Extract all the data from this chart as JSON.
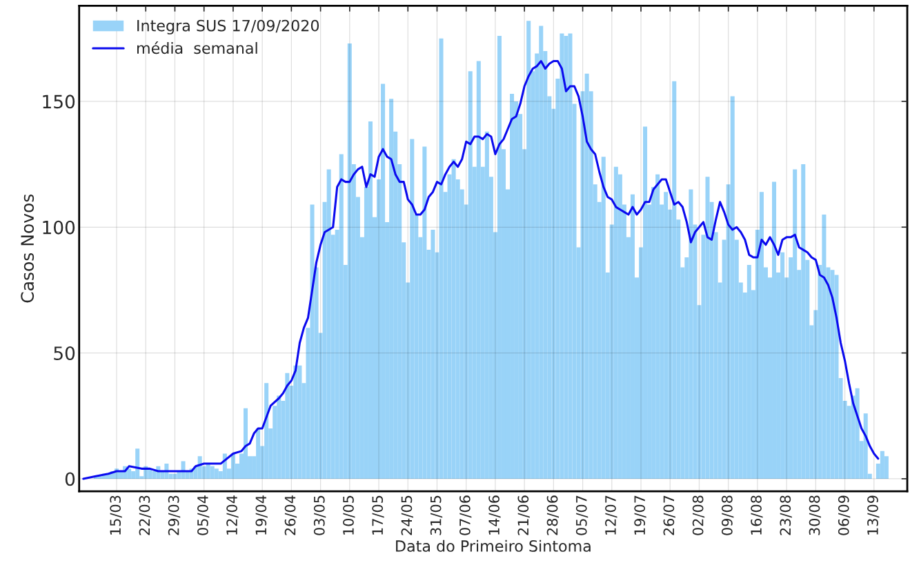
{
  "chart_data": {
    "type": "bar",
    "xlabel": "Data do Primeiro Sintoma",
    "ylabel": "Casos Novos",
    "xlim": [
      "2020-03-06",
      "2020-09-21"
    ],
    "ylim": [
      -5,
      188
    ],
    "xticks": [
      {
        "value": "2020-03-15",
        "label": "15/03"
      },
      {
        "value": "2020-03-22",
        "label": "22/03"
      },
      {
        "value": "2020-03-29",
        "label": "29/03"
      },
      {
        "value": "2020-04-05",
        "label": "05/04"
      },
      {
        "value": "2020-04-12",
        "label": "12/04"
      },
      {
        "value": "2020-04-19",
        "label": "19/04"
      },
      {
        "value": "2020-04-26",
        "label": "26/04"
      },
      {
        "value": "2020-05-03",
        "label": "03/05"
      },
      {
        "value": "2020-05-10",
        "label": "10/05"
      },
      {
        "value": "2020-05-17",
        "label": "17/05"
      },
      {
        "value": "2020-05-24",
        "label": "24/05"
      },
      {
        "value": "2020-05-31",
        "label": "31/05"
      },
      {
        "value": "2020-06-07",
        "label": "07/06"
      },
      {
        "value": "2020-06-14",
        "label": "14/06"
      },
      {
        "value": "2020-06-21",
        "label": "21/06"
      },
      {
        "value": "2020-06-28",
        "label": "28/06"
      },
      {
        "value": "2020-07-05",
        "label": "05/07"
      },
      {
        "value": "2020-07-12",
        "label": "12/07"
      },
      {
        "value": "2020-07-19",
        "label": "19/07"
      },
      {
        "value": "2020-07-26",
        "label": "26/07"
      },
      {
        "value": "2020-08-02",
        "label": "02/08"
      },
      {
        "value": "2020-08-09",
        "label": "09/08"
      },
      {
        "value": "2020-08-16",
        "label": "16/08"
      },
      {
        "value": "2020-08-23",
        "label": "23/08"
      },
      {
        "value": "2020-08-30",
        "label": "30/08"
      },
      {
        "value": "2020-09-06",
        "label": "06/09"
      },
      {
        "value": "2020-09-13",
        "label": "13/09"
      }
    ],
    "yticks": [
      0,
      50,
      100,
      150
    ],
    "grid": true,
    "legend": "top left",
    "series": [
      {
        "name": "Integra SUS 17/09/2020",
        "color": "#99d3f8",
        "x": [
          "2020-03-07",
          "2020-03-08",
          "2020-03-09",
          "2020-03-10",
          "2020-03-11",
          "2020-03-12",
          "2020-03-13",
          "2020-03-14",
          "2020-03-15",
          "2020-03-16",
          "2020-03-17",
          "2020-03-18",
          "2020-03-19",
          "2020-03-20",
          "2020-03-21",
          "2020-03-22",
          "2020-03-23",
          "2020-03-24",
          "2020-03-25",
          "2020-03-26",
          "2020-03-27",
          "2020-03-28",
          "2020-03-29",
          "2020-03-30",
          "2020-03-31",
          "2020-04-01",
          "2020-04-02",
          "2020-04-03",
          "2020-04-04",
          "2020-04-05",
          "2020-04-06",
          "2020-04-07",
          "2020-04-08",
          "2020-04-09",
          "2020-04-10",
          "2020-04-11",
          "2020-04-12",
          "2020-04-13",
          "2020-04-14",
          "2020-04-15",
          "2020-04-16",
          "2020-04-17",
          "2020-04-18",
          "2020-04-19",
          "2020-04-20",
          "2020-04-21",
          "2020-04-22",
          "2020-04-23",
          "2020-04-24",
          "2020-04-25",
          "2020-04-26",
          "2020-04-27",
          "2020-04-28",
          "2020-04-29",
          "2020-04-30",
          "2020-05-01",
          "2020-05-02",
          "2020-05-03",
          "2020-05-04",
          "2020-05-05",
          "2020-05-06",
          "2020-05-07",
          "2020-05-08",
          "2020-05-09",
          "2020-05-10",
          "2020-05-11",
          "2020-05-12",
          "2020-05-13",
          "2020-05-14",
          "2020-05-15",
          "2020-05-16",
          "2020-05-17",
          "2020-05-18",
          "2020-05-19",
          "2020-05-20",
          "2020-05-21",
          "2020-05-22",
          "2020-05-23",
          "2020-05-24",
          "2020-05-25",
          "2020-05-26",
          "2020-05-27",
          "2020-05-28",
          "2020-05-29",
          "2020-05-30",
          "2020-05-31",
          "2020-06-01",
          "2020-06-02",
          "2020-06-03",
          "2020-06-04",
          "2020-06-05",
          "2020-06-06",
          "2020-06-07",
          "2020-06-08",
          "2020-06-09",
          "2020-06-10",
          "2020-06-11",
          "2020-06-12",
          "2020-06-13",
          "2020-06-14",
          "2020-06-15",
          "2020-06-16",
          "2020-06-17",
          "2020-06-18",
          "2020-06-19",
          "2020-06-20",
          "2020-06-21",
          "2020-06-22",
          "2020-06-23",
          "2020-06-24",
          "2020-06-25",
          "2020-06-26",
          "2020-06-27",
          "2020-06-28",
          "2020-06-29",
          "2020-06-30",
          "2020-07-01",
          "2020-07-02",
          "2020-07-03",
          "2020-07-04",
          "2020-07-05",
          "2020-07-06",
          "2020-07-07",
          "2020-07-08",
          "2020-07-09",
          "2020-07-10",
          "2020-07-11",
          "2020-07-12",
          "2020-07-13",
          "2020-07-14",
          "2020-07-15",
          "2020-07-16",
          "2020-07-17",
          "2020-07-18",
          "2020-07-19",
          "2020-07-20",
          "2020-07-21",
          "2020-07-22",
          "2020-07-23",
          "2020-07-24",
          "2020-07-25",
          "2020-07-26",
          "2020-07-27",
          "2020-07-28",
          "2020-07-29",
          "2020-07-30",
          "2020-07-31",
          "2020-08-01",
          "2020-08-02",
          "2020-08-03",
          "2020-08-04",
          "2020-08-05",
          "2020-08-06",
          "2020-08-07",
          "2020-08-08",
          "2020-08-09",
          "2020-08-10",
          "2020-08-11",
          "2020-08-12",
          "2020-08-13",
          "2020-08-14",
          "2020-08-15",
          "2020-08-16",
          "2020-08-17",
          "2020-08-18",
          "2020-08-19",
          "2020-08-20",
          "2020-08-21",
          "2020-08-22",
          "2020-08-23",
          "2020-08-24",
          "2020-08-25",
          "2020-08-26",
          "2020-08-27",
          "2020-08-28",
          "2020-08-29",
          "2020-08-30",
          "2020-08-31",
          "2020-09-01",
          "2020-09-02",
          "2020-09-03",
          "2020-09-04",
          "2020-09-05",
          "2020-09-06",
          "2020-09-07",
          "2020-09-08",
          "2020-09-09",
          "2020-09-10",
          "2020-09-11",
          "2020-09-12",
          "2020-09-13",
          "2020-09-14",
          "2020-09-15",
          "2020-09-16"
        ],
        "values": [
          0,
          0,
          0,
          1,
          1,
          2,
          2,
          3,
          4,
          3,
          5,
          4,
          3,
          12,
          1,
          5,
          4,
          3,
          5,
          3,
          6,
          2,
          2,
          3,
          7,
          3,
          4,
          5,
          9,
          5,
          6,
          5,
          4,
          3,
          10,
          4,
          10,
          6,
          10,
          28,
          9,
          9,
          20,
          13,
          38,
          20,
          29,
          33,
          31,
          42,
          37,
          45,
          45,
          38,
          60,
          109,
          84,
          58,
          110,
          123,
          97,
          99,
          129,
          85,
          173,
          125,
          112,
          96,
          116,
          142,
          104,
          119,
          157,
          102,
          151,
          138,
          125,
          94,
          78,
          135,
          105,
          96,
          132,
          91,
          99,
          90,
          175,
          114,
          121,
          127,
          119,
          115,
          109,
          162,
          124,
          166,
          124,
          138,
          120,
          98,
          176,
          131,
          115,
          153,
          150,
          145,
          131,
          182,
          162,
          169,
          180,
          170,
          152,
          147,
          159,
          177,
          176,
          177,
          149,
          92,
          154,
          161,
          154,
          117,
          110,
          128,
          82,
          101,
          124,
          121,
          109,
          96,
          113,
          80,
          92,
          140,
          109,
          116,
          121,
          109,
          114,
          107,
          158,
          103,
          84,
          88,
          115,
          101,
          69,
          97,
          120,
          110,
          98,
          78,
          95,
          117,
          152,
          95,
          78,
          74,
          85,
          75,
          99,
          114,
          84,
          80,
          118,
          82,
          90,
          80,
          88,
          123,
          83,
          125,
          87,
          61,
          67,
          85,
          105,
          84,
          83,
          81,
          40,
          31,
          29,
          33,
          36,
          15,
          26,
          2,
          0,
          6,
          11,
          9
        ]
      },
      {
        "type": "line",
        "name": "média  semanal",
        "color": "#0a0aee",
        "x": [
          "2020-03-07",
          "2020-03-10",
          "2020-03-13",
          "2020-03-15",
          "2020-03-17",
          "2020-03-18",
          "2020-03-21",
          "2020-03-23",
          "2020-03-25",
          "2020-03-28",
          "2020-03-31",
          "2020-04-02",
          "2020-04-03",
          "2020-04-05",
          "2020-04-07",
          "2020-04-09",
          "2020-04-12",
          "2020-04-14",
          "2020-04-15",
          "2020-04-16",
          "2020-04-17",
          "2020-04-18",
          "2020-04-19",
          "2020-04-21",
          "2020-04-23",
          "2020-04-24",
          "2020-04-25",
          "2020-04-26",
          "2020-04-27",
          "2020-04-28",
          "2020-04-29",
          "2020-04-30",
          "2020-05-01",
          "2020-05-02",
          "2020-05-03",
          "2020-05-04",
          "2020-05-06",
          "2020-05-07",
          "2020-05-08",
          "2020-05-09",
          "2020-05-10",
          "2020-05-11",
          "2020-05-12",
          "2020-05-13",
          "2020-05-14",
          "2020-05-15",
          "2020-05-16",
          "2020-05-17",
          "2020-05-18",
          "2020-05-19",
          "2020-05-20",
          "2020-05-21",
          "2020-05-22",
          "2020-05-23",
          "2020-05-24",
          "2020-05-25",
          "2020-05-26",
          "2020-05-27",
          "2020-05-28",
          "2020-05-29",
          "2020-05-30",
          "2020-05-31",
          "2020-06-01",
          "2020-06-02",
          "2020-06-03",
          "2020-06-04",
          "2020-06-05",
          "2020-06-06",
          "2020-06-07",
          "2020-06-08",
          "2020-06-09",
          "2020-06-10",
          "2020-06-11",
          "2020-06-12",
          "2020-06-13",
          "2020-06-14",
          "2020-06-15",
          "2020-06-16",
          "2020-06-17",
          "2020-06-18",
          "2020-06-19",
          "2020-06-20",
          "2020-06-21",
          "2020-06-22",
          "2020-06-23",
          "2020-06-24",
          "2020-06-25",
          "2020-06-26",
          "2020-06-27",
          "2020-06-28",
          "2020-06-29",
          "2020-06-30",
          "2020-07-01",
          "2020-07-02",
          "2020-07-03",
          "2020-07-04",
          "2020-07-05",
          "2020-07-06",
          "2020-07-07",
          "2020-07-08",
          "2020-07-09",
          "2020-07-10",
          "2020-07-11",
          "2020-07-12",
          "2020-07-13",
          "2020-07-14",
          "2020-07-15",
          "2020-07-16",
          "2020-07-17",
          "2020-07-18",
          "2020-07-19",
          "2020-07-20",
          "2020-07-21",
          "2020-07-22",
          "2020-07-23",
          "2020-07-24",
          "2020-07-25",
          "2020-07-26",
          "2020-07-27",
          "2020-07-28",
          "2020-07-29",
          "2020-07-30",
          "2020-07-31",
          "2020-08-01",
          "2020-08-02",
          "2020-08-03",
          "2020-08-04",
          "2020-08-05",
          "2020-08-06",
          "2020-08-07",
          "2020-08-08",
          "2020-08-09",
          "2020-08-10",
          "2020-08-11",
          "2020-08-12",
          "2020-08-13",
          "2020-08-14",
          "2020-08-15",
          "2020-08-16",
          "2020-08-17",
          "2020-08-18",
          "2020-08-19",
          "2020-08-20",
          "2020-08-21",
          "2020-08-22",
          "2020-08-23",
          "2020-08-24",
          "2020-08-25",
          "2020-08-26",
          "2020-08-27",
          "2020-08-28",
          "2020-08-29",
          "2020-08-30",
          "2020-08-31",
          "2020-09-01",
          "2020-09-02",
          "2020-09-03",
          "2020-09-04",
          "2020-09-05",
          "2020-09-06",
          "2020-09-07",
          "2020-09-08",
          "2020-09-09",
          "2020-09-10",
          "2020-09-11",
          "2020-09-12",
          "2020-09-13",
          "2020-09-14"
        ],
        "values": [
          0,
          1,
          2,
          3,
          3,
          5,
          4,
          4,
          3,
          3,
          3,
          3,
          5,
          6,
          6,
          6,
          10,
          11,
          13,
          14,
          18,
          20,
          20,
          29,
          32,
          34,
          37,
          39,
          43,
          54,
          60,
          64,
          75,
          86,
          93,
          98,
          100,
          116,
          119,
          118,
          118,
          121,
          123,
          124,
          116,
          121,
          120,
          128,
          131,
          128,
          127,
          121,
          118,
          118,
          111,
          109,
          105,
          105,
          107,
          112,
          114,
          118,
          117,
          121,
          124,
          126,
          124,
          127,
          134,
          133,
          136,
          136,
          135,
          137,
          136,
          129,
          133,
          135,
          139,
          143,
          144,
          149,
          156,
          160,
          163,
          164,
          166,
          163,
          165,
          166,
          166,
          163,
          154,
          156,
          156,
          152,
          144,
          134,
          131,
          129,
          122,
          116,
          112,
          111,
          108,
          107,
          106,
          105,
          108,
          105,
          107,
          110,
          110,
          115,
          117,
          119,
          119,
          114,
          109,
          110,
          108,
          102,
          94,
          98,
          100,
          102,
          96,
          95,
          103,
          110,
          106,
          101,
          99,
          100,
          98,
          95,
          89,
          88,
          88,
          95,
          93,
          96,
          93,
          89,
          95,
          96,
          96,
          97,
          92,
          91,
          90,
          88,
          87,
          81,
          80,
          77,
          72,
          64,
          54,
          47,
          38,
          30,
          25,
          20,
          17,
          13,
          10,
          8
        ]
      }
    ]
  }
}
